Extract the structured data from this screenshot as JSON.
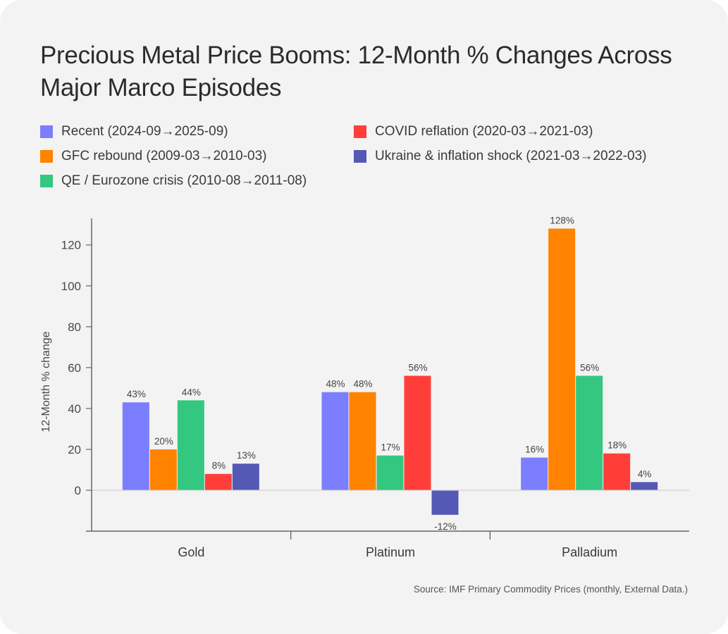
{
  "chart_data": {
    "type": "bar",
    "title": "Precious Metal Price Booms: 12-Month % Changes Across Major Marco Episodes",
    "xlabel": "",
    "ylabel": "12-Month % change",
    "ylim": [
      -20,
      133
    ],
    "yticks": [
      0,
      20,
      40,
      60,
      80,
      100,
      120
    ],
    "grid": false,
    "legend_position": "top-left",
    "categories": [
      "Gold",
      "Platinum",
      "Palladium"
    ],
    "series": [
      {
        "name": "Recent (2024-09→2025-09)",
        "color": "#7b7eff",
        "values": [
          43,
          48,
          16
        ],
        "labels": [
          "43%",
          "48%",
          "16%"
        ]
      },
      {
        "name": "GFC rebound (2009-03→2010-03)",
        "color": "#ff8200",
        "values": [
          20,
          48,
          128
        ],
        "labels": [
          "20%",
          "48%",
          "128%"
        ]
      },
      {
        "name": "QE / Eurozone crisis (2010-08→2011-08)",
        "color": "#34c780",
        "values": [
          44,
          17,
          56
        ],
        "labels": [
          "44%",
          "17%",
          "56%"
        ]
      },
      {
        "name": "COVID reflation (2020-03→2021-03)",
        "color": "#ff3e3a",
        "values": [
          8,
          56,
          18
        ],
        "labels": [
          "8%",
          "56%",
          "18%"
        ]
      },
      {
        "name": "Ukraine & inflation shock (2021-03→2022-03)",
        "color": "#5558b4",
        "values": [
          13,
          -12,
          4
        ],
        "labels": [
          "13%",
          "-12%",
          "4%"
        ]
      }
    ],
    "source": "Source: IMF Primary Commodity Prices (monthly, External Data.)"
  }
}
